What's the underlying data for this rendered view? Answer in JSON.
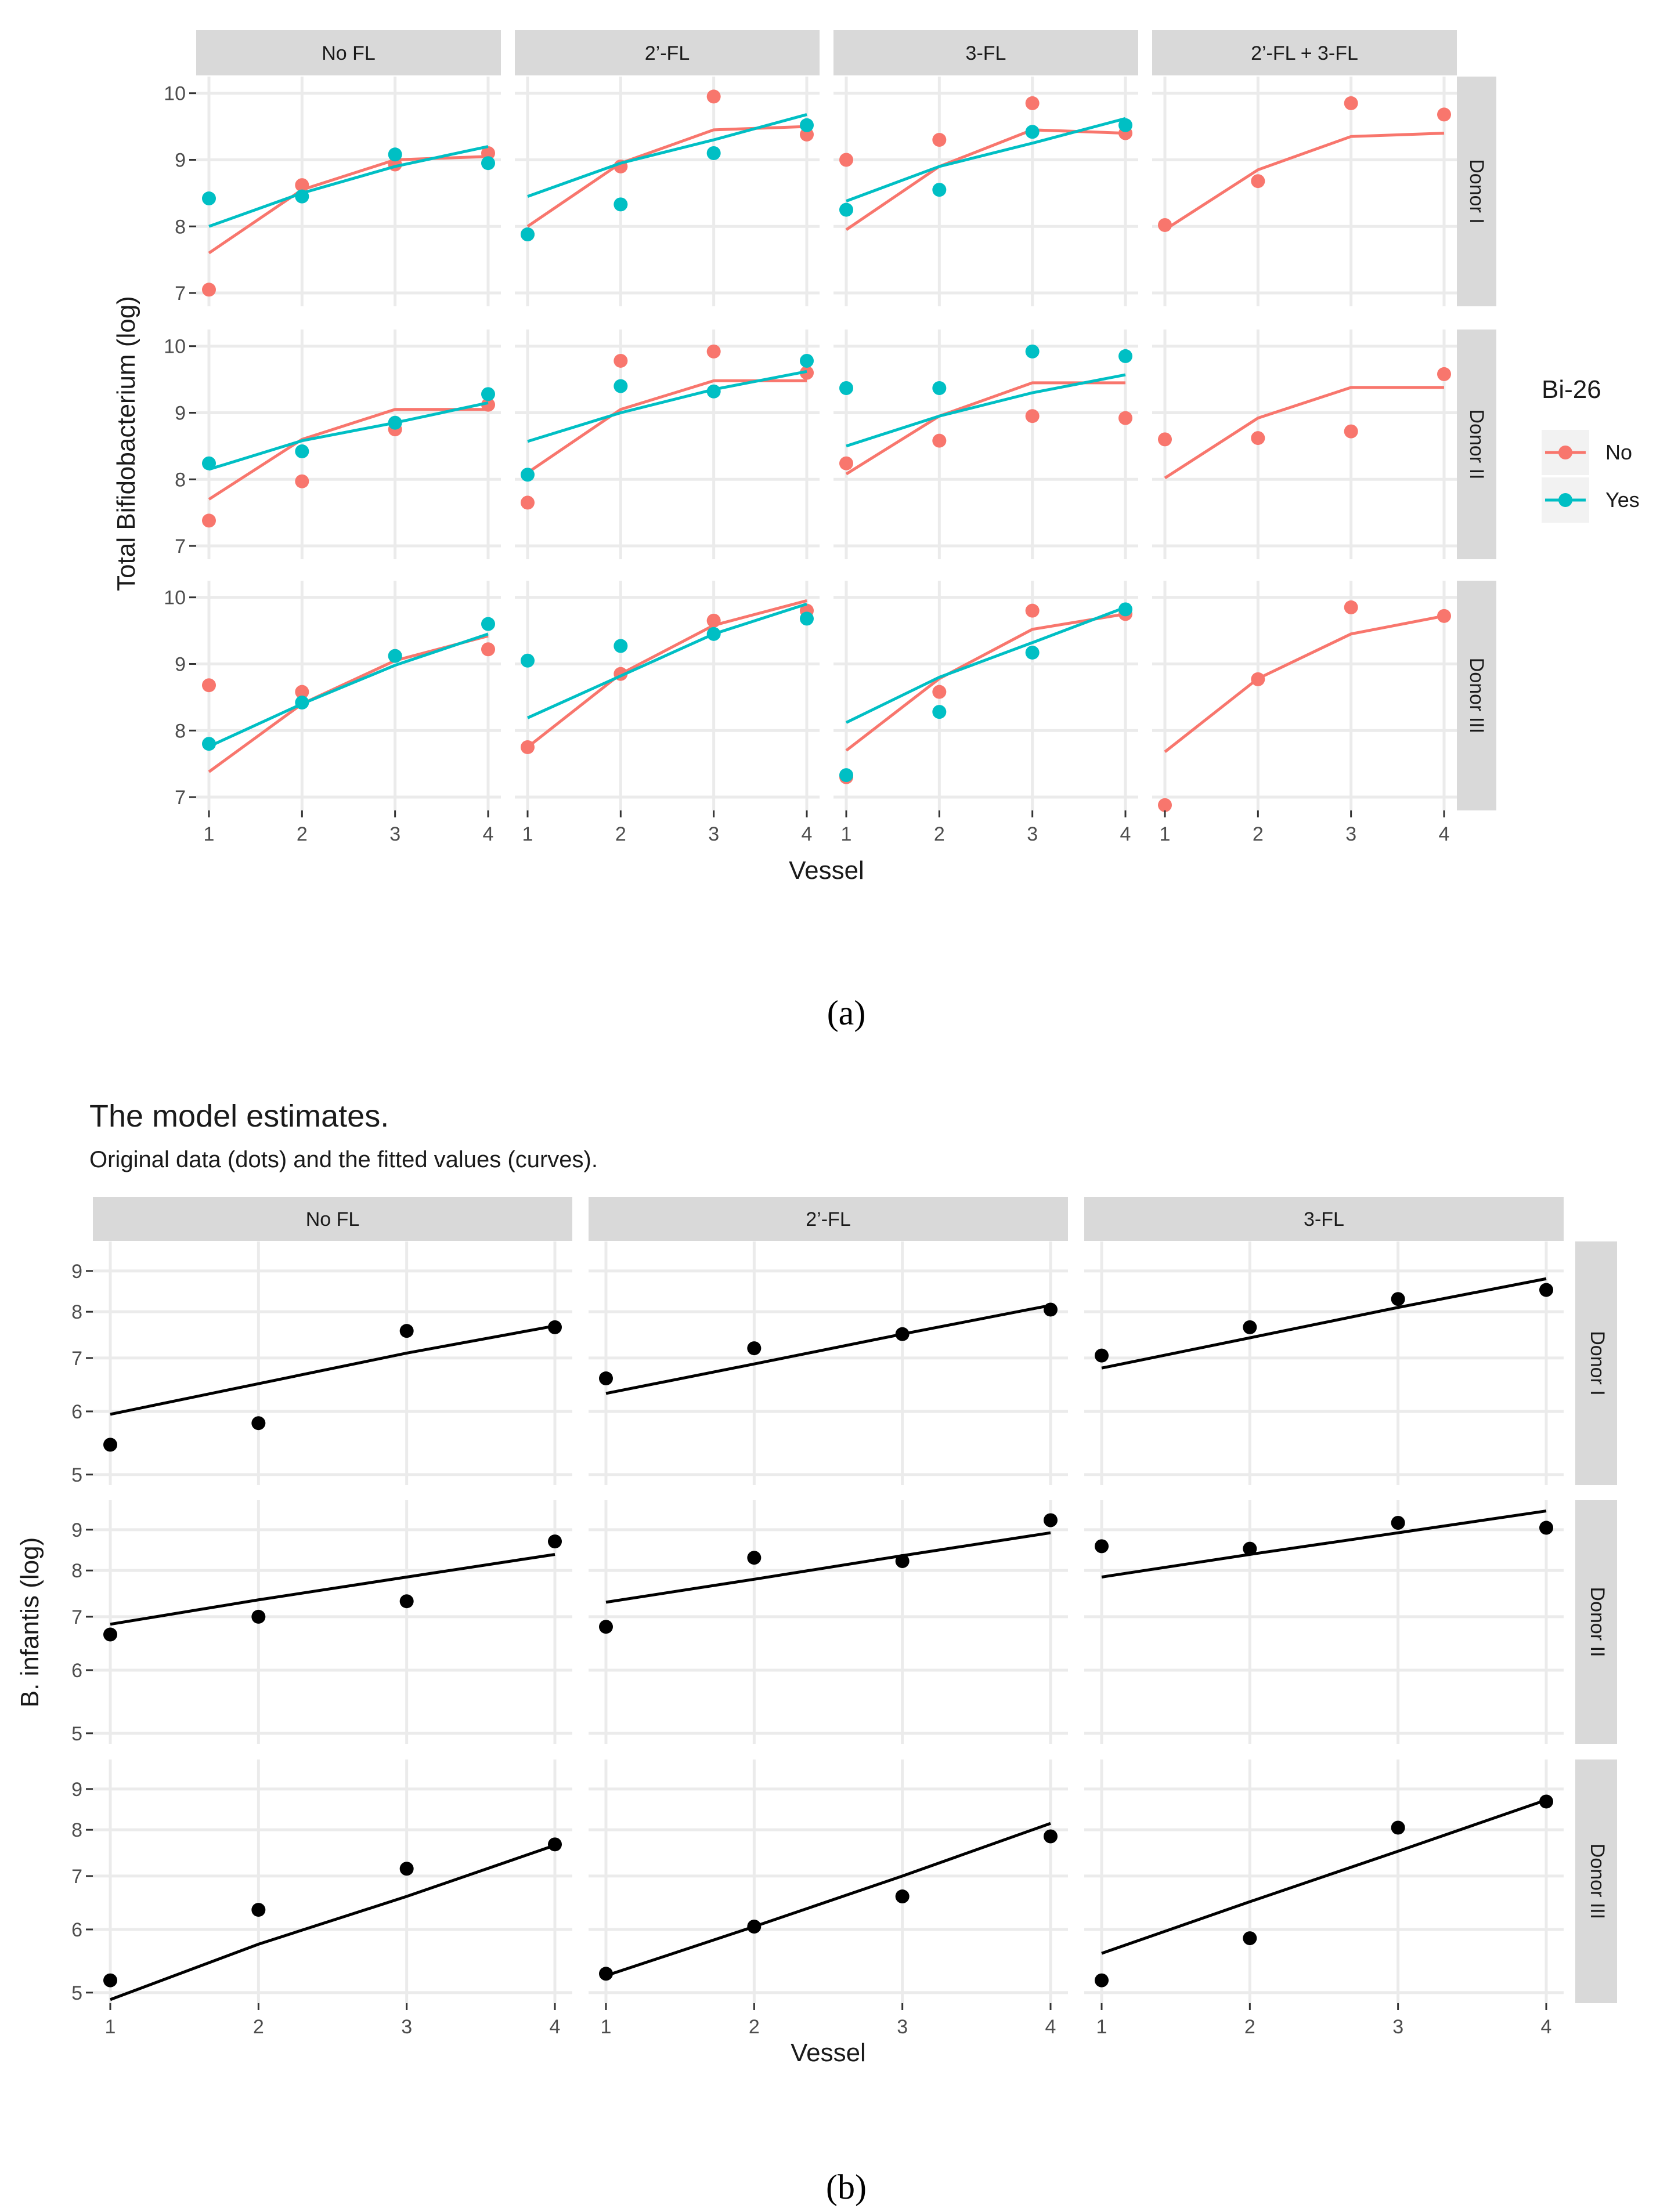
{
  "colors": {
    "panel_bg": "#ffffff",
    "strip_bg": "#d9d9d9",
    "grid": "#ebebeb",
    "tick": "#333333",
    "text": "#4d4d4d",
    "dark_text": "#000000",
    "series_no": "#f8766d",
    "series_yes": "#00bfc4",
    "black": "#000000"
  },
  "chart_data": [
    {
      "type": "scatter",
      "panel_label": "(a)",
      "xlabel": "Vessel",
      "ylabel": "Total Bifidobacterium (log)",
      "x": [
        1,
        2,
        3,
        4
      ],
      "ylim": [
        6.8,
        10.25
      ],
      "yticks": [
        7,
        8,
        9,
        10
      ],
      "facet_cols": [
        "No FL",
        "2’-FL",
        "3-FL",
        "2’-FL + 3-FL"
      ],
      "facet_rows": [
        "Donor I",
        "Donor II",
        "Donor III"
      ],
      "legend": {
        "title": "Bi-26",
        "position": "right",
        "entries": [
          {
            "label": "No",
            "color_key": "series_no"
          },
          {
            "label": "Yes",
            "color_key": "series_yes"
          }
        ]
      },
      "panels": [
        [
          {
            "No": {
              "points": [
                7.05,
                8.62,
                8.93,
                9.1
              ],
              "curve": [
                7.6,
                8.55,
                9.0,
                9.05
              ]
            },
            "Yes": {
              "points": [
                8.42,
                8.45,
                9.08,
                8.95
              ],
              "curve": [
                8.0,
                8.5,
                8.9,
                9.2
              ]
            }
          },
          {
            "No": {
              "points": [
                7.88,
                8.9,
                9.95,
                9.38
              ],
              "curve": [
                8.0,
                8.95,
                9.45,
                9.5
              ]
            },
            "Yes": {
              "points": [
                7.88,
                8.33,
                9.1,
                9.52
              ],
              "curve": [
                8.45,
                8.95,
                9.3,
                9.68
              ]
            }
          },
          {
            "No": {
              "points": [
                9.0,
                9.3,
                9.85,
                9.4
              ],
              "curve": [
                7.95,
                8.9,
                9.45,
                9.4
              ]
            },
            "Yes": {
              "points": [
                8.25,
                8.55,
                9.42,
                9.52
              ],
              "curve": [
                8.38,
                8.9,
                9.25,
                9.62
              ]
            }
          },
          {
            "No": {
              "points": [
                8.02,
                8.68,
                9.85,
                9.68
              ],
              "curve": [
                7.95,
                8.85,
                9.35,
                9.4
              ]
            },
            "Yes": null
          }
        ],
        [
          {
            "No": {
              "points": [
                7.38,
                7.97,
                8.75,
                9.12
              ],
              "curve": [
                7.7,
                8.6,
                9.05,
                9.05
              ]
            },
            "Yes": {
              "points": [
                8.24,
                8.42,
                8.85,
                9.28
              ],
              "curve": [
                8.15,
                8.58,
                8.85,
                9.15
              ]
            }
          },
          {
            "No": {
              "points": [
                7.65,
                9.78,
                9.92,
                9.6
              ],
              "curve": [
                8.1,
                9.05,
                9.48,
                9.48
              ]
            },
            "Yes": {
              "points": [
                8.07,
                9.4,
                9.32,
                9.78
              ],
              "curve": [
                8.57,
                9.0,
                9.35,
                9.62
              ]
            }
          },
          {
            "No": {
              "points": [
                8.24,
                8.58,
                8.95,
                8.92
              ],
              "curve": [
                8.08,
                8.95,
                9.45,
                9.45
              ]
            },
            "Yes": {
              "points": [
                9.37,
                9.37,
                9.92,
                9.85
              ],
              "curve": [
                8.5,
                8.95,
                9.3,
                9.57
              ]
            }
          },
          {
            "No": {
              "points": [
                8.6,
                8.62,
                8.72,
                9.58
              ],
              "curve": [
                8.02,
                8.92,
                9.38,
                9.38
              ]
            },
            "Yes": null
          }
        ],
        [
          {
            "No": {
              "points": [
                8.68,
                8.58,
                9.12,
                9.22
              ],
              "curve": [
                7.38,
                8.4,
                9.05,
                9.42
              ]
            },
            "Yes": {
              "points": [
                7.8,
                8.42,
                9.12,
                9.6
              ],
              "curve": [
                7.76,
                8.4,
                8.98,
                9.45
              ]
            }
          },
          {
            "No": {
              "points": [
                7.75,
                8.85,
                9.65,
                9.8
              ],
              "curve": [
                7.75,
                8.85,
                9.58,
                9.95
              ]
            },
            "Yes": {
              "points": [
                9.05,
                9.27,
                9.45,
                9.68
              ],
              "curve": [
                8.19,
                8.82,
                9.45,
                9.9
              ]
            }
          },
          {
            "No": {
              "points": [
                7.3,
                8.58,
                9.8,
                9.75
              ],
              "curve": [
                7.7,
                8.78,
                9.52,
                9.75
              ]
            },
            "Yes": {
              "points": [
                7.33,
                8.28,
                9.17,
                9.82
              ],
              "curve": [
                8.12,
                8.8,
                9.32,
                9.85
              ]
            }
          },
          {
            "No": {
              "points": [
                6.88,
                8.77,
                9.85,
                9.72
              ],
              "curve": [
                7.68,
                8.78,
                9.45,
                9.72
              ]
            },
            "Yes": null
          }
        ]
      ]
    },
    {
      "type": "scatter",
      "panel_label": "(b)",
      "title": "The model estimates.",
      "subtitle": "Original data (dots) and the fitted values (curves).",
      "xlabel": "Vessel",
      "ylabel": "B. infantis (log)",
      "x": [
        1,
        2,
        3,
        4
      ],
      "y_scale": "log",
      "ylim": [
        4.85,
        9.8
      ],
      "yticks": [
        5,
        6,
        7,
        8,
        9
      ],
      "facet_cols": [
        "No FL",
        "2’-FL",
        "3-FL"
      ],
      "facet_rows": [
        "Donor I",
        "Donor II",
        "Donor III"
      ],
      "panels": [
        [
          {
            "points": [
              5.45,
              5.8,
              7.57,
              7.65
            ],
            "curve": [
              5.95,
              6.5,
              7.1,
              7.68
            ]
          },
          {
            "points": [
              6.6,
              7.2,
              7.5,
              8.05
            ],
            "curve": [
              6.32,
              6.88,
              7.5,
              8.15
            ]
          },
          {
            "points": [
              7.05,
              7.65,
              8.3,
              8.52
            ],
            "curve": [
              6.8,
              7.42,
              8.1,
              8.8
            ]
          }
        ],
        [
          {
            "points": [
              6.65,
              7.0,
              7.32,
              8.7
            ],
            "curve": [
              6.85,
              7.35,
              7.85,
              8.38
            ]
          },
          {
            "points": [
              6.8,
              8.3,
              8.22,
              9.25
            ],
            "curve": [
              7.3,
              7.8,
              8.35,
              8.92
            ]
          },
          {
            "points": [
              8.58,
              8.52,
              9.18,
              9.05
            ],
            "curve": [
              7.85,
              8.38,
              8.92,
              9.5
            ]
          }
        ],
        [
          {
            "points": [
              5.18,
              6.35,
              7.15,
              7.67
            ],
            "curve": [
              4.9,
              5.75,
              6.6,
              7.65
            ]
          },
          {
            "points": [
              5.28,
              6.05,
              6.6,
              7.85
            ],
            "curve": [
              5.25,
              6.05,
              7.0,
              8.15
            ]
          },
          {
            "points": [
              5.18,
              5.85,
              8.05,
              8.68
            ],
            "curve": [
              5.6,
              6.5,
              7.52,
              8.72
            ]
          }
        ]
      ]
    }
  ]
}
